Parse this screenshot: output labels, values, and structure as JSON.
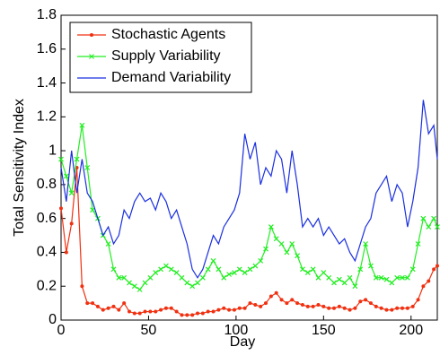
{
  "chart_data": {
    "type": "line",
    "x_label": "Day",
    "y_label": "Total Sensitivity Index",
    "xlim": [
      0,
      215
    ],
    "ylim": [
      0,
      1.8
    ],
    "xticks": [
      0,
      50,
      100,
      150,
      200
    ],
    "yticks": [
      0,
      0.2,
      0.4,
      0.6,
      0.8,
      1,
      1.2,
      1.4,
      1.6,
      1.8
    ],
    "legend": "upper-left",
    "x": [
      0,
      3,
      6,
      9,
      12,
      15,
      18,
      21,
      24,
      27,
      30,
      33,
      36,
      39,
      42,
      45,
      48,
      51,
      54,
      57,
      60,
      63,
      66,
      69,
      72,
      75,
      78,
      81,
      84,
      87,
      90,
      93,
      96,
      99,
      102,
      105,
      108,
      111,
      114,
      117,
      120,
      123,
      126,
      129,
      132,
      135,
      138,
      141,
      144,
      147,
      150,
      153,
      156,
      159,
      162,
      165,
      168,
      171,
      174,
      177,
      180,
      183,
      186,
      189,
      192,
      195,
      198,
      201,
      204,
      207,
      210,
      213,
      215
    ],
    "series": [
      {
        "name": "Stochastic Agents",
        "color": "#f03010",
        "marker": "dot",
        "values": [
          0.66,
          0.4,
          0.57,
          0.9,
          0.2,
          0.1,
          0.1,
          0.08,
          0.06,
          0.07,
          0.08,
          0.06,
          0.1,
          0.05,
          0.04,
          0.04,
          0.05,
          0.05,
          0.05,
          0.06,
          0.07,
          0.07,
          0.05,
          0.03,
          0.03,
          0.03,
          0.04,
          0.04,
          0.05,
          0.05,
          0.06,
          0.07,
          0.06,
          0.06,
          0.07,
          0.07,
          0.1,
          0.09,
          0.08,
          0.1,
          0.14,
          0.16,
          0.12,
          0.1,
          0.12,
          0.1,
          0.09,
          0.08,
          0.08,
          0.09,
          0.08,
          0.07,
          0.07,
          0.08,
          0.07,
          0.06,
          0.07,
          0.11,
          0.12,
          0.1,
          0.08,
          0.07,
          0.06,
          0.06,
          0.07,
          0.07,
          0.07,
          0.08,
          0.12,
          0.2,
          0.23,
          0.3,
          0.32
        ]
      },
      {
        "name": "Supply Variability",
        "color": "#22ee22",
        "marker": "x",
        "values": [
          0.95,
          0.85,
          0.75,
          0.95,
          1.15,
          0.9,
          0.65,
          0.6,
          0.5,
          0.45,
          0.3,
          0.25,
          0.25,
          0.22,
          0.2,
          0.18,
          0.22,
          0.25,
          0.28,
          0.3,
          0.32,
          0.3,
          0.28,
          0.25,
          0.22,
          0.2,
          0.22,
          0.25,
          0.3,
          0.35,
          0.3,
          0.25,
          0.27,
          0.28,
          0.3,
          0.28,
          0.3,
          0.32,
          0.35,
          0.42,
          0.55,
          0.48,
          0.45,
          0.4,
          0.45,
          0.38,
          0.3,
          0.28,
          0.3,
          0.25,
          0.28,
          0.25,
          0.22,
          0.24,
          0.22,
          0.25,
          0.2,
          0.3,
          0.45,
          0.32,
          0.25,
          0.25,
          0.24,
          0.22,
          0.25,
          0.25,
          0.25,
          0.3,
          0.45,
          0.6,
          0.55,
          0.6,
          0.55
        ]
      },
      {
        "name": "Demand Variability",
        "color": "#1a2fe0",
        "marker": "none",
        "values": [
          0.9,
          0.7,
          1.0,
          0.75,
          0.95,
          0.75,
          0.7,
          0.6,
          0.5,
          0.55,
          0.45,
          0.5,
          0.65,
          0.6,
          0.7,
          0.75,
          0.7,
          0.72,
          0.65,
          0.75,
          0.7,
          0.6,
          0.65,
          0.55,
          0.45,
          0.3,
          0.25,
          0.3,
          0.4,
          0.5,
          0.45,
          0.55,
          0.6,
          0.65,
          0.75,
          1.1,
          0.95,
          1.05,
          0.8,
          0.9,
          0.85,
          1.0,
          0.95,
          0.75,
          1.0,
          0.8,
          0.55,
          0.6,
          0.55,
          0.6,
          0.5,
          0.55,
          0.5,
          0.45,
          0.48,
          0.4,
          0.35,
          0.45,
          0.55,
          0.6,
          0.75,
          0.8,
          0.85,
          0.7,
          0.8,
          0.75,
          0.55,
          0.7,
          0.9,
          1.3,
          1.1,
          1.15,
          0.95
        ]
      }
    ]
  }
}
